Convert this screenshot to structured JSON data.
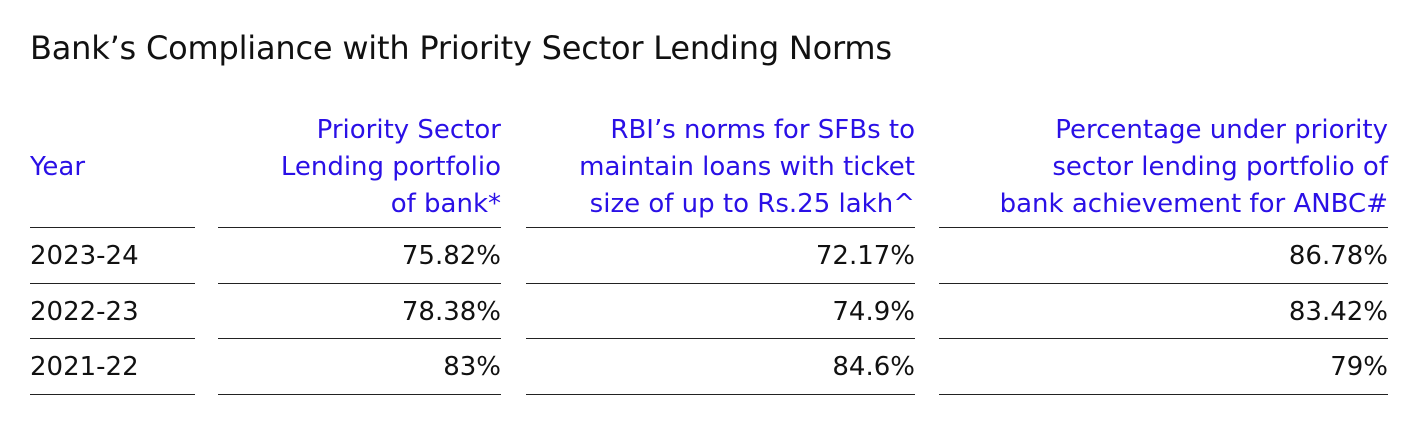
{
  "title": "Bank’s Compliance with Priority Sector Lending Norms",
  "table": {
    "columns": [
      "Year",
      "Priority Sector Lending portfolio of bank*",
      "RBI’s norms for SFBs to maintain loans with ticket size of up to Rs.25 lakh^",
      "Percentage under priority sector lending portfolio of bank achievement for ANBC#"
    ],
    "header_lines": [
      [
        "Year"
      ],
      [
        "Priority Sector",
        "Lending portfolio",
        "of bank*"
      ],
      [
        "RBI’s norms for SFBs to",
        "maintain loans with ticket",
        "size of up to Rs.25 lakh^"
      ],
      [
        "Percentage under priority",
        "sector lending portfolio of",
        "bank achievement for ANBC#"
      ]
    ],
    "rows": [
      [
        "2023-24",
        "75.82%",
        "72.17%",
        "86.78%"
      ],
      [
        "2022-23",
        "78.38%",
        "74.9%",
        "83.42%"
      ],
      [
        "2021-22",
        "83%",
        "84.6%",
        "79%"
      ]
    ]
  },
  "colors": {
    "header_text": "#2a10e6",
    "body_text": "#111111",
    "rule": "#222222"
  }
}
